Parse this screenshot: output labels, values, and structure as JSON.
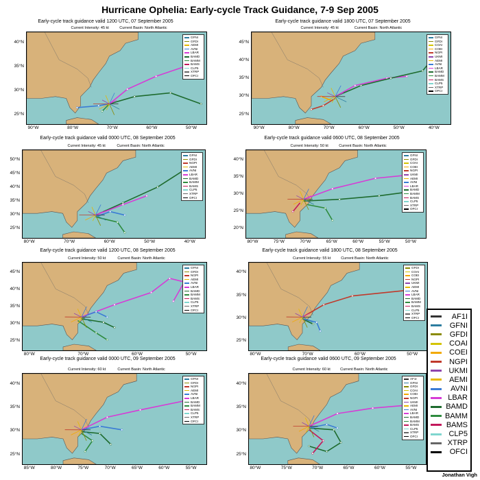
{
  "title": "Hurricane Ophelia: Early-cycle Track Guidance, 7-9 Sep 2005",
  "credit": "Jonathan Vigh",
  "models": [
    {
      "name": "AF1I",
      "color": "#333333"
    },
    {
      "name": "GFNI",
      "color": "#2c7da0"
    },
    {
      "name": "GFDI",
      "color": "#8a8a00"
    },
    {
      "name": "COAI",
      "color": "#d4c400"
    },
    {
      "name": "COEI",
      "color": "#f2a900"
    },
    {
      "name": "NGPI",
      "color": "#c0392b"
    },
    {
      "name": "UKMI",
      "color": "#8e44ad"
    },
    {
      "name": "AEMI",
      "color": "#e6b800"
    },
    {
      "name": "AVNI",
      "color": "#3a7bd5"
    },
    {
      "name": "LBAR",
      "color": "#d63bd6"
    },
    {
      "name": "BAMD",
      "color": "#1e6b2e"
    },
    {
      "name": "BAMM",
      "color": "#2e8b3e"
    },
    {
      "name": "BAMS",
      "color": "#c2185b"
    },
    {
      "name": "CLP5",
      "color": "#7fd6cf"
    },
    {
      "name": "XTRP",
      "color": "#666666"
    },
    {
      "name": "OFCI",
      "color": "#000000"
    }
  ],
  "panels": [
    {
      "title": "Early-cycle track guidance valid 1200 UTC, 07 September 2005",
      "intensity": "Current Intensity: 45 kt",
      "basin": "Current Basin: North Atlantic",
      "lats": [
        "40°N",
        "35°N",
        "30°N",
        "25°N"
      ],
      "lons": [
        "90°W",
        "80°W",
        "70°W",
        "60°W",
        "50°W"
      ],
      "legend": [
        "GFNI",
        "GFDI",
        "AEMI",
        "AVNI",
        "LBAR",
        "BAMD",
        "BAMM",
        "BAMS",
        "CLP5",
        "XTRP",
        "OFCI"
      ]
    },
    {
      "title": "Early-cycle track guidance valid 1800 UTC, 07 September 2005",
      "intensity": "Current Intensity: 45 kt",
      "basin": "Current Basin: North Atlantic",
      "lats": [
        "45°N",
        "40°N",
        "35°N",
        "30°N",
        "25°N"
      ],
      "lons": [
        "90°W",
        "80°W",
        "70°W",
        "60°W",
        "50°W",
        "40°W"
      ],
      "legend": [
        "GFNI",
        "GFDI",
        "COAI",
        "COEI",
        "NGPI",
        "UKMI",
        "AEMI",
        "AVNI",
        "LBAR",
        "BAMD",
        "BAMM",
        "BAMS",
        "CLP5",
        "XTRP",
        "OFCI"
      ]
    },
    {
      "title": "Early-cycle track guidance valid 0000 UTC, 08 September 2005",
      "intensity": "Current Intensity: 45 kt",
      "basin": "Current Basin: North Atlantic",
      "lats": [
        "50°N",
        "45°N",
        "40°N",
        "35°N",
        "30°N",
        "25°N"
      ],
      "lons": [
        "80°W",
        "70°W",
        "60°W",
        "50°W",
        "40°W"
      ],
      "legend": [
        "GFNI",
        "GFDI",
        "NGPI",
        "AEMI",
        "AVNI",
        "LBAR",
        "BAMD",
        "BAMM",
        "BAMS",
        "CLP5",
        "XTRP",
        "OFCI"
      ]
    },
    {
      "title": "Early-cycle track guidance valid 0600 UTC, 08 September 2005",
      "intensity": "Current Intensity: 50 kt",
      "basin": "Current Basin: North Atlantic",
      "lats": [
        "40°N",
        "35°N",
        "30°N",
        "25°N",
        "20°N"
      ],
      "lons": [
        "80°W",
        "75°W",
        "70°W",
        "65°W",
        "60°W",
        "55°W",
        "50°W"
      ],
      "legend": [
        "GFNI",
        "GFDI",
        "COAI",
        "COEI",
        "NGPI",
        "UKMI",
        "AEMI",
        "AVNI",
        "LBAR",
        "BAMD",
        "BAMM",
        "BAMS",
        "CLP5",
        "XTRP",
        "OFCI"
      ]
    },
    {
      "title": "Early-cycle track guidance valid 1200 UTC, 08 September 2005",
      "intensity": "Current Intensity: 50 kt",
      "basin": "Current Basin: North Atlantic",
      "lats": [
        "45°N",
        "40°N",
        "35°N",
        "30°N",
        "25°N"
      ],
      "lons": [
        "80°W",
        "70°W",
        "60°W",
        "50°W"
      ],
      "legend": [
        "GFNI",
        "GFDI",
        "NGPI",
        "AEMI",
        "AVNI",
        "LBAR",
        "BAMD",
        "BAMM",
        "BAMS",
        "CLP5",
        "XTRP",
        "OFCI"
      ]
    },
    {
      "title": "Early-cycle track guidance valid 1800 UTC, 08 September 2005",
      "intensity": "Current Intensity: 55 kt",
      "basin": "Current Basin: North Atlantic",
      "lats": [
        "40°N",
        "35°N",
        "30°N",
        "25°N"
      ],
      "lons": [
        "80°W",
        "70°W",
        "60°W",
        "50°W"
      ],
      "legend": [
        "GFDI",
        "COAI",
        "COEI",
        "NGPI",
        "UKMI",
        "AEMI",
        "AVNI",
        "LBAR",
        "BAMD",
        "BAMM",
        "BAMS",
        "CLP5",
        "XTRP",
        "OFCI"
      ]
    },
    {
      "title": "Early-cycle track guidance valid 0000 UTC, 09 September 2005",
      "intensity": "Current Intensity: 60 kt",
      "basin": "Current Basin: North Atlantic",
      "lats": [
        "40°N",
        "35°N",
        "30°N",
        "25°N"
      ],
      "lons": [
        "85°W",
        "80°W",
        "75°W",
        "70°W",
        "65°W",
        "60°W",
        "55°W"
      ],
      "legend": [
        "GFNI",
        "GFDI",
        "NGPI",
        "AEMI",
        "AVNI",
        "LBAR",
        "BAMD",
        "BAMM",
        "BAMS",
        "CLP5",
        "XTRP",
        "OFCI"
      ]
    },
    {
      "title": "Early-cycle track guidance valid 0600 UTC, 09 September 2005",
      "intensity": "Current Intensity: 60 kt",
      "basin": "Current Basin: North Atlantic",
      "lats": [
        "40°N",
        "35°N",
        "30°N",
        "25°N"
      ],
      "lons": [
        "80°W",
        "75°W",
        "70°W",
        "65°W",
        "60°W",
        "55°W"
      ],
      "legend": [
        "AF1I",
        "GFNI",
        "GFDI",
        "COAI",
        "COEI",
        "NGPI",
        "UKMI",
        "AEMI",
        "AVNI",
        "LBAR",
        "BAMD",
        "BAMM",
        "BAMS",
        "CLP5",
        "XTRP",
        "OFCI"
      ]
    }
  ]
}
